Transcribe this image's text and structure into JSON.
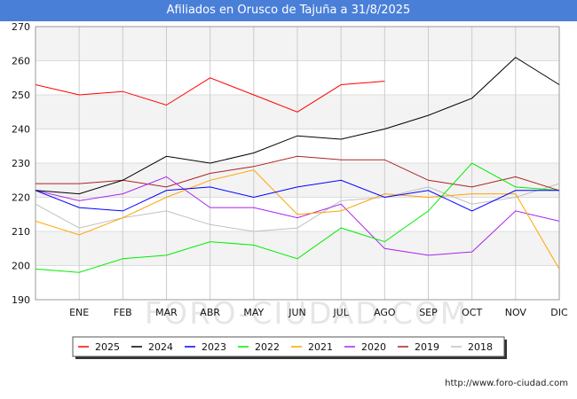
{
  "title": "Afiliados en Orusco de Tajuña a 31/8/2025",
  "footer_url": "http://www.foro-ciudad.com",
  "watermark": "FORO-CIUDAD.COM",
  "chart_data": {
    "type": "line",
    "title": "Afiliados en Orusco de Tajuña a 31/8/2025",
    "xlabel": "",
    "ylabel": "",
    "x": [
      "",
      "ENE",
      "FEB",
      "MAR",
      "ABR",
      "MAY",
      "JUN",
      "JUL",
      "AGO",
      "SEP",
      "OCT",
      "NOV",
      "DIC"
    ],
    "ylim": [
      190,
      270
    ],
    "yticks": [
      190,
      200,
      210,
      220,
      230,
      240,
      250,
      260,
      270
    ],
    "grid": true,
    "legend_position": "bottom",
    "series": [
      {
        "name": "2025",
        "color": "#ff0000",
        "values": [
          253,
          250,
          251,
          247,
          255,
          250,
          245,
          253,
          254,
          null,
          null,
          null,
          null
        ]
      },
      {
        "name": "2024",
        "color": "#000000",
        "values": [
          222,
          221,
          225,
          232,
          230,
          233,
          238,
          237,
          240,
          244,
          249,
          261,
          253
        ]
      },
      {
        "name": "2023",
        "color": "#0000ff",
        "values": [
          222,
          217,
          216,
          222,
          223,
          220,
          223,
          225,
          220,
          222,
          216,
          222,
          222
        ]
      },
      {
        "name": "2022",
        "color": "#00ee00",
        "values": [
          199,
          198,
          202,
          203,
          207,
          206,
          202,
          211,
          207,
          216,
          230,
          223,
          222
        ]
      },
      {
        "name": "2021",
        "color": "#ffa500",
        "values": [
          213,
          209,
          214,
          220,
          225,
          228,
          215,
          216,
          221,
          220,
          221,
          221,
          199
        ]
      },
      {
        "name": "2020",
        "color": "#aa22ee",
        "values": [
          222,
          219,
          221,
          226,
          217,
          217,
          214,
          218,
          205,
          203,
          204,
          216,
          213
        ]
      },
      {
        "name": "2019",
        "color": "#aa2222",
        "values": [
          224,
          224,
          225,
          223,
          227,
          229,
          232,
          231,
          231,
          225,
          223,
          226,
          222
        ]
      },
      {
        "name": "2018",
        "color": "#c0c0c0",
        "values": [
          218,
          211,
          214,
          216,
          212,
          210,
          211,
          219,
          220,
          223,
          218,
          220,
          224
        ]
      }
    ]
  }
}
